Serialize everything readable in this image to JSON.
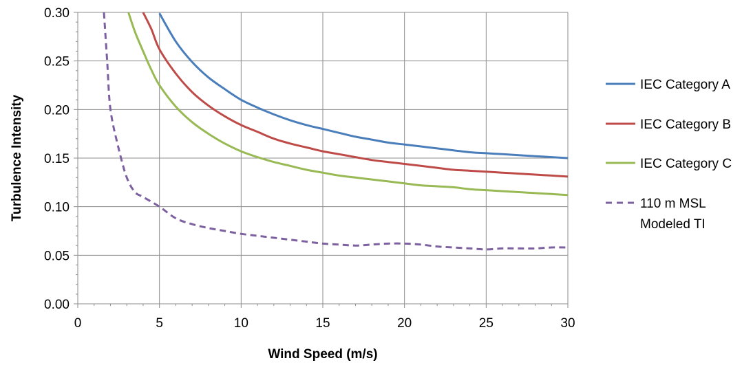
{
  "chart_data": {
    "type": "line",
    "title": "",
    "xlabel": "Wind Speed (m/s)",
    "ylabel": "Turbulence Intensity",
    "xlim": [
      0,
      30
    ],
    "ylim": [
      0,
      0.3
    ],
    "x_ticks": [
      "0",
      "5",
      "10",
      "15",
      "20",
      "25",
      "30"
    ],
    "y_ticks": [
      "0.00",
      "0.05",
      "0.10",
      "0.15",
      "0.20",
      "0.25",
      "0.30"
    ],
    "grid": true,
    "legend_position": "right",
    "series": [
      {
        "name": "IEC Category A",
        "color": "#4a7ebb",
        "style": "solid",
        "x": [
          5,
          6,
          7,
          8,
          9,
          10,
          11,
          12,
          13,
          14,
          15,
          16,
          17,
          18,
          19,
          20,
          21,
          22,
          23,
          24,
          25,
          26,
          27,
          28,
          29,
          30
        ],
        "y": [
          0.299,
          0.27,
          0.249,
          0.233,
          0.221,
          0.21,
          0.202,
          0.195,
          0.189,
          0.184,
          0.18,
          0.176,
          0.172,
          0.169,
          0.166,
          0.164,
          0.162,
          0.16,
          0.158,
          0.156,
          0.155,
          0.154,
          0.153,
          0.152,
          0.151,
          0.15
        ]
      },
      {
        "name": "IEC Category B",
        "color": "#be4b48",
        "style": "solid",
        "x": [
          4,
          4.5,
          5,
          6,
          7,
          8,
          9,
          10,
          11,
          12,
          13,
          14,
          15,
          16,
          17,
          18,
          19,
          20,
          21,
          22,
          23,
          24,
          25,
          26,
          27,
          28,
          29,
          30
        ],
        "y": [
          0.3,
          0.283,
          0.262,
          0.237,
          0.218,
          0.204,
          0.193,
          0.184,
          0.177,
          0.17,
          0.165,
          0.161,
          0.157,
          0.154,
          0.151,
          0.148,
          0.146,
          0.144,
          0.142,
          0.14,
          0.138,
          0.137,
          0.136,
          0.135,
          0.134,
          0.133,
          0.132,
          0.131
        ]
      },
      {
        "name": "IEC Category C",
        "color": "#98b954",
        "style": "solid",
        "x": [
          3.1,
          3.5,
          4,
          4.5,
          5,
          6,
          7,
          8,
          9,
          10,
          11,
          12,
          13,
          14,
          15,
          16,
          17,
          18,
          19,
          20,
          21,
          22,
          23,
          24,
          25,
          26,
          27,
          28,
          29,
          30
        ],
        "y": [
          0.3,
          0.28,
          0.26,
          0.241,
          0.225,
          0.203,
          0.187,
          0.175,
          0.165,
          0.157,
          0.151,
          0.146,
          0.142,
          0.138,
          0.135,
          0.132,
          0.13,
          0.128,
          0.126,
          0.124,
          0.122,
          0.121,
          0.12,
          0.118,
          0.117,
          0.116,
          0.115,
          0.114,
          0.113,
          0.112
        ]
      },
      {
        "name": "110 m MSL Modeled TI",
        "color": "#7d60a0",
        "style": "dashed",
        "x": [
          1.6,
          1.8,
          2,
          2.5,
          3,
          3.5,
          4,
          5,
          6,
          7,
          8,
          9,
          10,
          11,
          12,
          13,
          14,
          15,
          16,
          17,
          18,
          19,
          20,
          21,
          22,
          23,
          24,
          25,
          26,
          27,
          28,
          29,
          30
        ],
        "y": [
          0.3,
          0.25,
          0.2,
          0.16,
          0.13,
          0.115,
          0.11,
          0.1,
          0.088,
          0.082,
          0.078,
          0.075,
          0.072,
          0.07,
          0.068,
          0.066,
          0.064,
          0.062,
          0.061,
          0.06,
          0.061,
          0.062,
          0.062,
          0.061,
          0.059,
          0.058,
          0.057,
          0.056,
          0.057,
          0.057,
          0.057,
          0.058,
          0.058
        ]
      }
    ],
    "legend": [
      {
        "lines": [
          "IEC Category A"
        ]
      },
      {
        "lines": [
          "IEC Category B"
        ]
      },
      {
        "lines": [
          "IEC Category C"
        ]
      },
      {
        "lines": [
          "110 m MSL",
          "Modeled TI"
        ]
      }
    ]
  }
}
